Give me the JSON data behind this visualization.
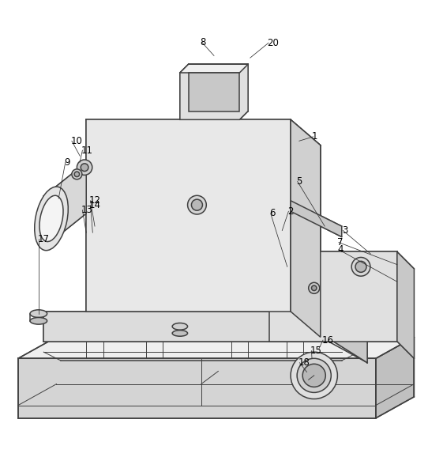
{
  "background_color": "#ffffff",
  "line_color": "#404040",
  "label_fontsize": 8.5,
  "lw_main": 1.1,
  "lw_thin": 0.7
}
